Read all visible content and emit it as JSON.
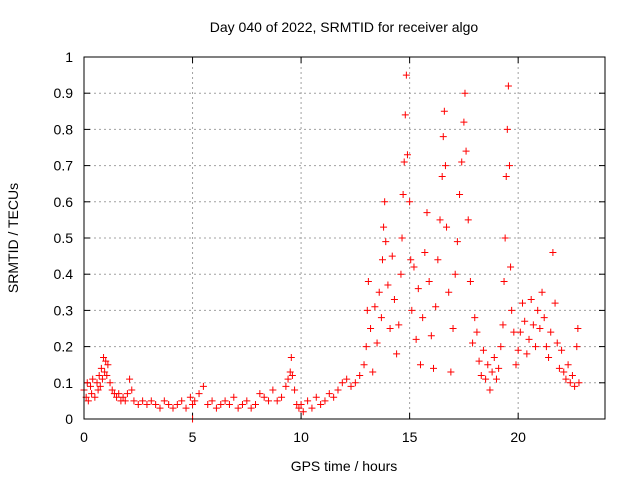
{
  "chart_data": {
    "type": "scatter",
    "title": "Day 040 of 2022, SRMTID for receiver algo",
    "xlabel": "GPS time / hours",
    "ylabel": "SRMTID / TECUs",
    "xlim": [
      0,
      24
    ],
    "ylim": [
      0,
      1
    ],
    "xticks": [
      0,
      5,
      10,
      15,
      20
    ],
    "yticks": [
      0,
      0.1,
      0.2,
      0.3,
      0.4,
      0.5,
      0.6,
      0.7,
      0.8,
      0.9,
      1
    ],
    "xtick_labels": [
      "0",
      "5",
      "10",
      "15",
      "20"
    ],
    "ytick_labels": [
      "0",
      "0.1",
      "0.2",
      "0.3",
      "0.4",
      "0.5",
      "0.6",
      "0.7",
      "0.8",
      "0.9",
      "1"
    ],
    "grid": true,
    "marker": "+",
    "marker_color": "#ff0000",
    "series": [
      {
        "name": "algo",
        "points": [
          [
            0.0,
            0.08
          ],
          [
            0.1,
            0.06
          ],
          [
            0.15,
            0.1
          ],
          [
            0.2,
            0.05
          ],
          [
            0.3,
            0.09
          ],
          [
            0.35,
            0.07
          ],
          [
            0.4,
            0.11
          ],
          [
            0.5,
            0.06
          ],
          [
            0.6,
            0.1
          ],
          [
            0.65,
            0.08
          ],
          [
            0.7,
            0.12
          ],
          [
            0.75,
            0.09
          ],
          [
            0.8,
            0.14
          ],
          [
            0.85,
            0.11
          ],
          [
            0.9,
            0.17
          ],
          [
            0.95,
            0.13
          ],
          [
            1.0,
            0.16
          ],
          [
            1.05,
            0.12
          ],
          [
            1.1,
            0.15
          ],
          [
            1.2,
            0.1
          ],
          [
            1.3,
            0.08
          ],
          [
            1.4,
            0.07
          ],
          [
            1.5,
            0.06
          ],
          [
            1.6,
            0.07
          ],
          [
            1.7,
            0.05
          ],
          [
            1.8,
            0.06
          ],
          [
            1.9,
            0.05
          ],
          [
            2.0,
            0.07
          ],
          [
            2.1,
            0.11
          ],
          [
            2.2,
            0.08
          ],
          [
            2.3,
            0.05
          ],
          [
            2.5,
            0.04
          ],
          [
            2.7,
            0.05
          ],
          [
            2.9,
            0.04
          ],
          [
            3.1,
            0.05
          ],
          [
            3.3,
            0.04
          ],
          [
            3.5,
            0.03
          ],
          [
            3.7,
            0.05
          ],
          [
            3.9,
            0.04
          ],
          [
            4.1,
            0.03
          ],
          [
            4.3,
            0.04
          ],
          [
            4.5,
            0.05
          ],
          [
            4.7,
            0.03
          ],
          [
            4.9,
            0.06
          ],
          [
            5.0,
            0.04
          ],
          [
            5.0,
            0.0
          ],
          [
            5.1,
            0.05
          ],
          [
            5.3,
            0.07
          ],
          [
            5.5,
            0.09
          ],
          [
            5.7,
            0.04
          ],
          [
            5.9,
            0.05
          ],
          [
            6.1,
            0.03
          ],
          [
            6.3,
            0.04
          ],
          [
            6.5,
            0.05
          ],
          [
            6.7,
            0.04
          ],
          [
            6.9,
            0.06
          ],
          [
            7.1,
            0.03
          ],
          [
            7.3,
            0.04
          ],
          [
            7.5,
            0.05
          ],
          [
            7.7,
            0.03
          ],
          [
            7.9,
            0.04
          ],
          [
            8.1,
            0.07
          ],
          [
            8.3,
            0.06
          ],
          [
            8.5,
            0.05
          ],
          [
            8.7,
            0.08
          ],
          [
            8.9,
            0.05
          ],
          [
            9.1,
            0.06
          ],
          [
            9.3,
            0.09
          ],
          [
            9.4,
            0.11
          ],
          [
            9.5,
            0.13
          ],
          [
            9.55,
            0.17
          ],
          [
            9.6,
            0.12
          ],
          [
            9.7,
            0.08
          ],
          [
            9.8,
            0.04
          ],
          [
            9.9,
            0.03
          ],
          [
            10.0,
            0.04
          ],
          [
            10.1,
            0.02
          ],
          [
            10.3,
            0.05
          ],
          [
            10.5,
            0.03
          ],
          [
            10.7,
            0.06
          ],
          [
            10.9,
            0.04
          ],
          [
            11.1,
            0.05
          ],
          [
            11.3,
            0.07
          ],
          [
            11.5,
            0.06
          ],
          [
            11.7,
            0.08
          ],
          [
            11.9,
            0.1
          ],
          [
            12.1,
            0.11
          ],
          [
            12.3,
            0.09
          ],
          [
            12.5,
            0.1
          ],
          [
            12.7,
            0.12
          ],
          [
            12.9,
            0.15
          ],
          [
            13.0,
            0.2
          ],
          [
            13.05,
            0.3
          ],
          [
            13.1,
            0.38
          ],
          [
            13.2,
            0.25
          ],
          [
            13.3,
            0.13
          ],
          [
            13.4,
            0.31
          ],
          [
            13.5,
            0.21
          ],
          [
            13.6,
            0.35
          ],
          [
            13.7,
            0.28
          ],
          [
            13.75,
            0.44
          ],
          [
            13.8,
            0.53
          ],
          [
            13.85,
            0.6
          ],
          [
            13.9,
            0.49
          ],
          [
            14.0,
            0.37
          ],
          [
            14.1,
            0.25
          ],
          [
            14.2,
            0.45
          ],
          [
            14.3,
            0.33
          ],
          [
            14.4,
            0.18
          ],
          [
            14.5,
            0.26
          ],
          [
            14.6,
            0.4
          ],
          [
            14.65,
            0.5
          ],
          [
            14.7,
            0.62
          ],
          [
            14.75,
            0.71
          ],
          [
            14.8,
            0.84
          ],
          [
            14.85,
            0.95
          ],
          [
            14.9,
            0.73
          ],
          [
            15.0,
            0.6
          ],
          [
            15.05,
            0.44
          ],
          [
            15.1,
            0.3
          ],
          [
            15.2,
            0.42
          ],
          [
            15.3,
            0.22
          ],
          [
            15.4,
            0.36
          ],
          [
            15.5,
            0.15
          ],
          [
            15.6,
            0.28
          ],
          [
            15.7,
            0.46
          ],
          [
            15.8,
            0.57
          ],
          [
            15.9,
            0.38
          ],
          [
            16.0,
            0.23
          ],
          [
            16.1,
            0.14
          ],
          [
            16.2,
            0.31
          ],
          [
            16.3,
            0.44
          ],
          [
            16.4,
            0.55
          ],
          [
            16.5,
            0.67
          ],
          [
            16.55,
            0.78
          ],
          [
            16.6,
            0.85
          ],
          [
            16.65,
            0.7
          ],
          [
            16.7,
            0.53
          ],
          [
            16.8,
            0.35
          ],
          [
            16.9,
            0.13
          ],
          [
            17.0,
            0.25
          ],
          [
            17.1,
            0.4
          ],
          [
            17.2,
            0.49
          ],
          [
            17.3,
            0.62
          ],
          [
            17.4,
            0.71
          ],
          [
            17.5,
            0.82
          ],
          [
            17.55,
            0.9
          ],
          [
            17.6,
            0.74
          ],
          [
            17.7,
            0.55
          ],
          [
            17.8,
            0.38
          ],
          [
            17.9,
            0.21
          ],
          [
            18.0,
            0.28
          ],
          [
            18.1,
            0.24
          ],
          [
            18.2,
            0.16
          ],
          [
            18.3,
            0.12
          ],
          [
            18.4,
            0.19
          ],
          [
            18.5,
            0.11
          ],
          [
            18.6,
            0.15
          ],
          [
            18.7,
            0.08
          ],
          [
            18.8,
            0.13
          ],
          [
            18.9,
            0.17
          ],
          [
            19.0,
            0.11
          ],
          [
            19.1,
            0.14
          ],
          [
            19.2,
            0.2
          ],
          [
            19.3,
            0.26
          ],
          [
            19.35,
            0.38
          ],
          [
            19.4,
            0.5
          ],
          [
            19.45,
            0.67
          ],
          [
            19.5,
            0.8
          ],
          [
            19.55,
            0.92
          ],
          [
            19.6,
            0.7
          ],
          [
            19.65,
            0.42
          ],
          [
            19.7,
            0.3
          ],
          [
            19.8,
            0.24
          ],
          [
            19.9,
            0.15
          ],
          [
            20.0,
            0.19
          ],
          [
            20.1,
            0.24
          ],
          [
            20.2,
            0.32
          ],
          [
            20.3,
            0.27
          ],
          [
            20.4,
            0.18
          ],
          [
            20.5,
            0.22
          ],
          [
            20.6,
            0.33
          ],
          [
            20.7,
            0.26
          ],
          [
            20.8,
            0.2
          ],
          [
            20.9,
            0.3
          ],
          [
            21.0,
            0.25
          ],
          [
            21.1,
            0.35
          ],
          [
            21.2,
            0.28
          ],
          [
            21.3,
            0.2
          ],
          [
            21.4,
            0.17
          ],
          [
            21.5,
            0.24
          ],
          [
            21.6,
            0.46
          ],
          [
            21.7,
            0.32
          ],
          [
            21.8,
            0.21
          ],
          [
            21.9,
            0.14
          ],
          [
            22.0,
            0.19
          ],
          [
            22.1,
            0.13
          ],
          [
            22.2,
            0.11
          ],
          [
            22.3,
            0.15
          ],
          [
            22.4,
            0.1
          ],
          [
            22.5,
            0.12
          ],
          [
            22.6,
            0.09
          ],
          [
            22.7,
            0.2
          ],
          [
            22.75,
            0.25
          ],
          [
            22.8,
            0.1
          ]
        ]
      }
    ]
  }
}
